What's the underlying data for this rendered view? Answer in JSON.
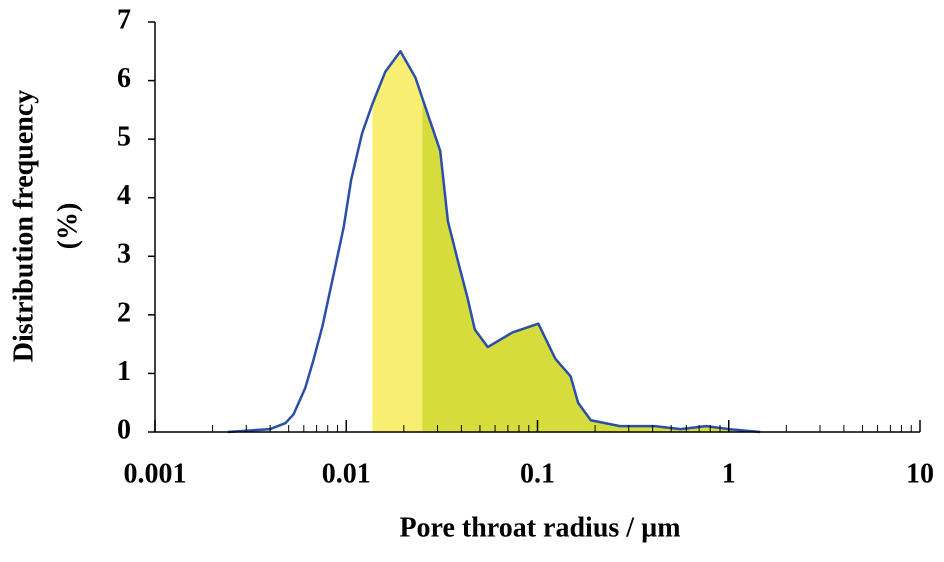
{
  "chart_data": {
    "type": "line",
    "xlabel": "Pore throat radius / µm",
    "ylabel": [
      "Distribution frequency",
      "(%)"
    ],
    "x": [
      0.0024,
      0.004,
      0.0048,
      0.0053,
      0.0061,
      0.0067,
      0.0075,
      0.0086,
      0.0097,
      0.0106,
      0.0121,
      0.0137,
      0.016,
      0.0192,
      0.023,
      0.0275,
      0.031,
      0.034,
      0.0385,
      0.043,
      0.047,
      0.055,
      0.074,
      0.101,
      0.124,
      0.149,
      0.163,
      0.19,
      0.27,
      0.41,
      0.56,
      0.76,
      1.0,
      1.46
    ],
    "series": [
      {
        "color": "#2b4fa8",
        "values": [
          0,
          0.05,
          0.15,
          0.3,
          0.75,
          1.2,
          1.8,
          2.7,
          3.5,
          4.3,
          5.1,
          5.6,
          6.15,
          6.5,
          6.05,
          5.3,
          4.8,
          3.6,
          2.9,
          2.3,
          1.75,
          1.45,
          1.7,
          1.85,
          1.25,
          0.95,
          0.5,
          0.2,
          0.1,
          0.1,
          0.05,
          0.1,
          0.05,
          0
        ]
      }
    ],
    "highlight_ranges": [
      {
        "xlim": [
          0.0137,
          0.025
        ],
        "color": "#f8ef72"
      },
      {
        "xlim": [
          0.025,
          1.46
        ],
        "color": "#d6dc3c"
      }
    ],
    "xscale": "log",
    "xlim": [
      0.001,
      10
    ],
    "xticks": [
      0.001,
      0.01,
      0.1,
      1,
      10
    ],
    "ylim": [
      0,
      7
    ],
    "yticks": [
      0,
      1,
      2,
      3,
      4,
      5,
      6,
      7
    ]
  }
}
